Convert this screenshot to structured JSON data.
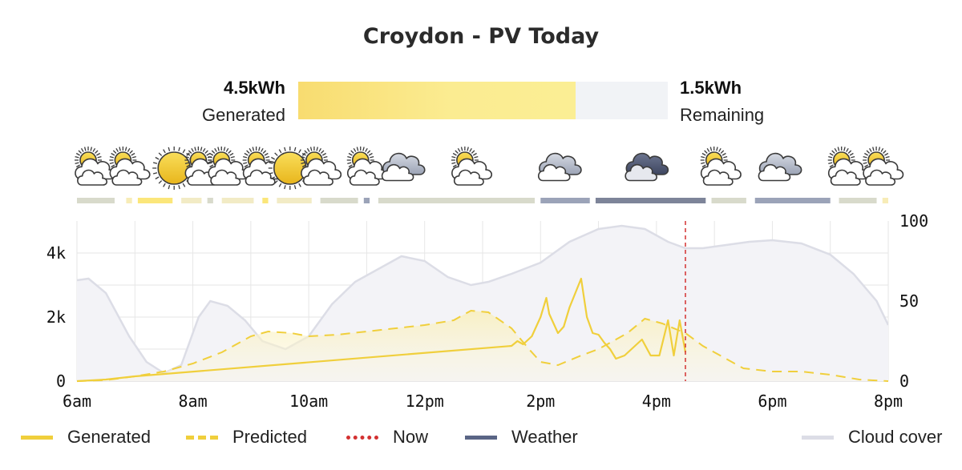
{
  "header": {
    "title": "Croydon - PV Today"
  },
  "summary": {
    "generated_value": "4.5kWh",
    "generated_label": "Generated",
    "remaining_value": "1.5kWh",
    "remaining_label": "Remaining",
    "generated_fraction": 0.75
  },
  "weather_strip": [
    {
      "hour": 6.0,
      "icon": "partly-cloudy-icon"
    },
    {
      "hour": 6.6,
      "icon": "partly-cloudy-icon"
    },
    {
      "hour": 7.4,
      "icon": "sun-icon"
    },
    {
      "hour": 7.9,
      "icon": "partly-cloudy-icon"
    },
    {
      "hour": 8.3,
      "icon": "partly-cloudy-icon"
    },
    {
      "hour": 8.9,
      "icon": "partly-cloudy-icon"
    },
    {
      "hour": 9.4,
      "icon": "sun-icon"
    },
    {
      "hour": 9.9,
      "icon": "partly-cloudy-icon"
    },
    {
      "hour": 10.7,
      "icon": "partly-cloudy-icon"
    },
    {
      "hour": 11.3,
      "icon": "cloud-icon"
    },
    {
      "hour": 12.5,
      "icon": "partly-cloudy-icon"
    },
    {
      "hour": 14.0,
      "icon": "cloud-icon"
    },
    {
      "hour": 15.5,
      "icon": "dark-cloud-icon"
    },
    {
      "hour": 16.8,
      "icon": "partly-cloudy-icon"
    },
    {
      "hour": 17.8,
      "icon": "cloud-icon"
    },
    {
      "hour": 19.0,
      "icon": "partly-cloudy-icon"
    },
    {
      "hour": 19.6,
      "icon": "partly-cloudy-icon"
    }
  ],
  "weather_segments": [
    {
      "from": 6.0,
      "to": 6.65,
      "color": "#d8dacb"
    },
    {
      "from": 6.85,
      "to": 6.95,
      "color": "#f7ecb7"
    },
    {
      "from": 7.05,
      "to": 7.65,
      "color": "#fbe67a"
    },
    {
      "from": 7.8,
      "to": 8.15,
      "color": "#f2ebc5"
    },
    {
      "from": 8.25,
      "to": 8.35,
      "color": "#d8dacb"
    },
    {
      "from": 8.5,
      "to": 9.05,
      "color": "#f2ebc5"
    },
    {
      "from": 9.2,
      "to": 9.3,
      "color": "#fbe67a"
    },
    {
      "from": 9.45,
      "to": 10.05,
      "color": "#f2ebc5"
    },
    {
      "from": 10.2,
      "to": 10.85,
      "color": "#d8dacb"
    },
    {
      "from": 10.95,
      "to": 11.05,
      "color": "#9ba3b8"
    },
    {
      "from": 11.2,
      "to": 13.9,
      "color": "#d8dacb"
    },
    {
      "from": 14.0,
      "to": 14.85,
      "color": "#9ba3b8"
    },
    {
      "from": 14.95,
      "to": 16.85,
      "color": "#7d8499"
    },
    {
      "from": 16.95,
      "to": 17.55,
      "color": "#d8dacb"
    },
    {
      "from": 17.7,
      "to": 19.0,
      "color": "#9ba3b8"
    },
    {
      "from": 19.15,
      "to": 19.8,
      "color": "#d8dacb"
    },
    {
      "from": 19.9,
      "to": 20.0,
      "color": "#f7ecb7"
    }
  ],
  "chart_data": {
    "type": "line",
    "title": "",
    "x_ticks": [
      "6am",
      "8am",
      "10am",
      "12pm",
      "2pm",
      "4pm",
      "6pm",
      "8pm"
    ],
    "x_range": [
      6,
      20
    ],
    "y_left": {
      "range": [
        0,
        5000
      ],
      "ticks": [
        "0",
        "2k",
        "4k"
      ]
    },
    "y_right": {
      "range": [
        0,
        100
      ],
      "ticks": [
        "0",
        "50",
        "100"
      ]
    },
    "now": 16.5,
    "series": [
      {
        "name": "Generated",
        "color": "#f0cf3c",
        "axis": "left",
        "points": [
          [
            6.0,
            0
          ],
          [
            6.5,
            50
          ],
          [
            7.0,
            150
          ],
          [
            13.5,
            1100
          ],
          [
            13.6,
            1250
          ],
          [
            13.7,
            1150
          ],
          [
            13.85,
            1400
          ],
          [
            14.0,
            2000
          ],
          [
            14.1,
            2600
          ],
          [
            14.15,
            2100
          ],
          [
            14.3,
            1500
          ],
          [
            14.4,
            1700
          ],
          [
            14.5,
            2300
          ],
          [
            14.7,
            3200
          ],
          [
            14.8,
            2000
          ],
          [
            14.9,
            1500
          ],
          [
            15.0,
            1450
          ],
          [
            15.1,
            1200
          ],
          [
            15.2,
            1000
          ],
          [
            15.3,
            700
          ],
          [
            15.45,
            800
          ],
          [
            15.6,
            1050
          ],
          [
            15.75,
            1300
          ],
          [
            15.9,
            800
          ],
          [
            16.05,
            800
          ],
          [
            16.2,
            1900
          ],
          [
            16.3,
            800
          ],
          [
            16.4,
            1900
          ],
          [
            16.5,
            900
          ]
        ]
      },
      {
        "name": "Predicted",
        "color": "#f0cf3c",
        "axis": "left",
        "dashed": true,
        "points": [
          [
            6.0,
            0
          ],
          [
            6.5,
            30
          ],
          [
            7.0,
            150
          ],
          [
            7.5,
            300
          ],
          [
            8.0,
            550
          ],
          [
            8.5,
            900
          ],
          [
            9.0,
            1400
          ],
          [
            9.3,
            1550
          ],
          [
            9.7,
            1500
          ],
          [
            10.0,
            1400
          ],
          [
            10.5,
            1450
          ],
          [
            11.0,
            1550
          ],
          [
            11.5,
            1650
          ],
          [
            12.0,
            1750
          ],
          [
            12.5,
            1900
          ],
          [
            12.8,
            2200
          ],
          [
            13.1,
            2150
          ],
          [
            13.5,
            1650
          ],
          [
            13.8,
            1000
          ],
          [
            14.0,
            600
          ],
          [
            14.3,
            500
          ],
          [
            14.7,
            800
          ],
          [
            15.0,
            1000
          ],
          [
            15.5,
            1500
          ],
          [
            15.8,
            1950
          ],
          [
            16.1,
            1800
          ],
          [
            16.5,
            1500
          ],
          [
            16.8,
            1100
          ],
          [
            17.2,
            700
          ],
          [
            17.5,
            400
          ],
          [
            18.0,
            300
          ],
          [
            18.5,
            300
          ],
          [
            19.0,
            200
          ],
          [
            19.5,
            50
          ],
          [
            20.0,
            0
          ]
        ]
      },
      {
        "name": "Cloud cover",
        "color": "#dcdde6",
        "axis": "right",
        "points": [
          [
            6.0,
            63
          ],
          [
            6.2,
            64
          ],
          [
            6.5,
            55
          ],
          [
            6.9,
            28
          ],
          [
            7.2,
            12
          ],
          [
            7.5,
            5
          ],
          [
            7.8,
            10
          ],
          [
            8.1,
            40
          ],
          [
            8.3,
            50
          ],
          [
            8.6,
            47
          ],
          [
            8.9,
            38
          ],
          [
            9.2,
            25
          ],
          [
            9.6,
            20
          ],
          [
            10.0,
            28
          ],
          [
            10.4,
            48
          ],
          [
            10.8,
            62
          ],
          [
            11.2,
            70
          ],
          [
            11.6,
            78
          ],
          [
            12.0,
            75
          ],
          [
            12.4,
            65
          ],
          [
            12.8,
            60
          ],
          [
            13.1,
            62
          ],
          [
            13.5,
            67
          ],
          [
            14.0,
            74
          ],
          [
            14.5,
            87
          ],
          [
            15.0,
            95
          ],
          [
            15.4,
            97
          ],
          [
            15.8,
            95
          ],
          [
            16.2,
            87
          ],
          [
            16.5,
            83
          ],
          [
            16.8,
            83
          ],
          [
            17.2,
            85
          ],
          [
            17.6,
            87
          ],
          [
            18.0,
            88
          ],
          [
            18.5,
            86
          ],
          [
            19.0,
            79
          ],
          [
            19.4,
            67
          ],
          [
            19.8,
            50
          ],
          [
            20.0,
            35
          ]
        ]
      }
    ],
    "legend": [
      {
        "label": "Generated",
        "style": "solid",
        "color": "#f0cf3c"
      },
      {
        "label": "Predicted",
        "style": "dashed",
        "color": "#f0cf3c"
      },
      {
        "label": "Now",
        "style": "dotted",
        "color": "#d33131"
      },
      {
        "label": "Weather",
        "style": "solid",
        "color": "#5a6585"
      },
      {
        "label": "Cloud cover",
        "style": "solid",
        "color": "#dcdde6"
      }
    ]
  }
}
